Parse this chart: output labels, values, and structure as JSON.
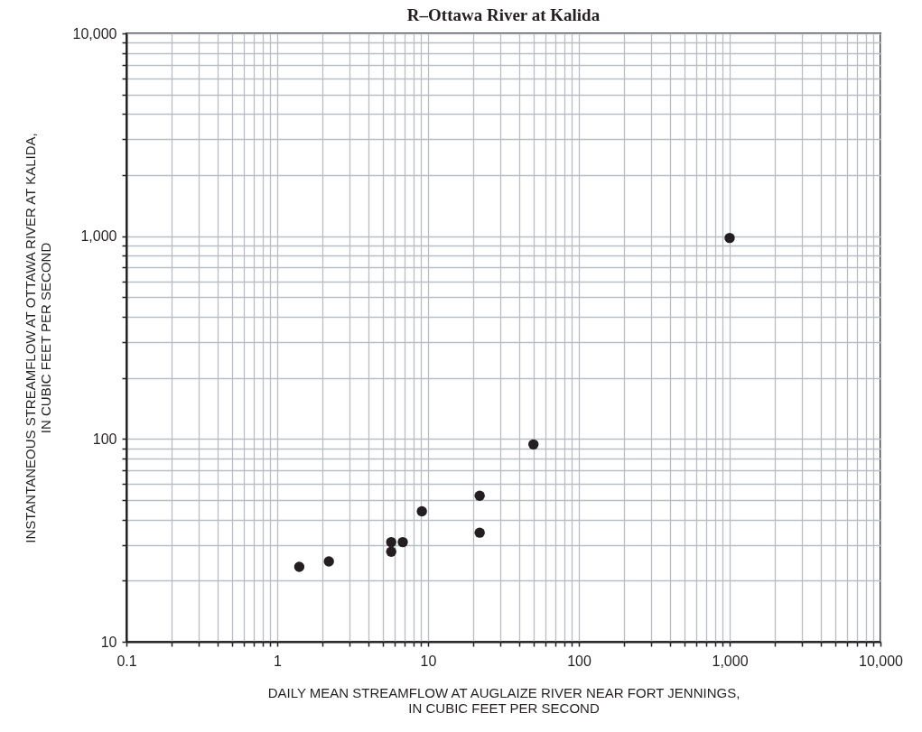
{
  "chart_data": {
    "type": "scatter",
    "title": "R–Ottawa River at Kalida",
    "xlabel": "DAILY MEAN STREAMFLOW AT AUGLAIZE RIVER NEAR FORT JENNINGS,\nIN CUBIC FEET PER SECOND",
    "ylabel": "INSTANTANEOUS STREAMFLOW AT OTTAWA RIVER AT KALIDA,\nIN CUBIC FEET PER SECOND",
    "x": [
      1.4,
      2.2,
      5.7,
      5.7,
      6.8,
      9.1,
      22,
      22,
      50,
      1000
    ],
    "series": [
      {
        "color": "#231f20",
        "values": [
          23.4,
          24.9,
          31,
          27.8,
          31,
          44,
          52.5,
          34.5,
          94,
          980
        ]
      }
    ],
    "log": "xy",
    "grid": true,
    "marker": "circle",
    "xlim": [
      0.1,
      10000
    ],
    "ylim": [
      10,
      10000
    ],
    "xticks": [
      0.1,
      {
        "value": 0.2,
        "label": null
      },
      {
        "value": 0.3,
        "label": null
      },
      {
        "value": 0.4,
        "label": null
      },
      {
        "value": 0.5,
        "label": null
      },
      {
        "value": 0.6,
        "label": null
      },
      {
        "value": 0.7,
        "label": null
      },
      {
        "value": 0.8,
        "label": null
      },
      {
        "value": 0.9,
        "label": null
      },
      1,
      {
        "value": 2,
        "label": null
      },
      {
        "value": 3,
        "label": null
      },
      {
        "value": 4,
        "label": null
      },
      {
        "value": 5,
        "label": null
      },
      {
        "value": 6,
        "label": null
      },
      {
        "value": 7,
        "label": null
      },
      {
        "value": 8,
        "label": null
      },
      {
        "value": 9,
        "label": null
      },
      10,
      {
        "value": 20,
        "label": null
      },
      {
        "value": 30,
        "label": null
      },
      {
        "value": 40,
        "label": null
      },
      {
        "value": 50,
        "label": null
      },
      {
        "value": 60,
        "label": null
      },
      {
        "value": 70,
        "label": null
      },
      {
        "value": 80,
        "label": null
      },
      {
        "value": 90,
        "label": null
      },
      100,
      {
        "value": 200,
        "label": null
      },
      {
        "value": 300,
        "label": null
      },
      {
        "value": 400,
        "label": null
      },
      {
        "value": 500,
        "label": null
      },
      {
        "value": 600,
        "label": null
      },
      {
        "value": 700,
        "label": null
      },
      {
        "value": 800,
        "label": null
      },
      {
        "value": 900,
        "label": null
      },
      {
        "value": 1000,
        "label": "1,000"
      },
      {
        "value": 2000,
        "label": null
      },
      {
        "value": 3000,
        "label": null
      },
      {
        "value": 4000,
        "label": null
      },
      {
        "value": 5000,
        "label": null
      },
      {
        "value": 6000,
        "label": null
      },
      {
        "value": 7000,
        "label": null
      },
      {
        "value": 8000,
        "label": null
      },
      {
        "value": 9000,
        "label": null
      },
      {
        "value": 10000,
        "label": "10,000"
      }
    ],
    "yticks": [
      10,
      {
        "value": 20,
        "label": null
      },
      {
        "value": 30,
        "label": null
      },
      {
        "value": 40,
        "label": null
      },
      {
        "value": 50,
        "label": null
      },
      {
        "value": 60,
        "label": null
      },
      {
        "value": 70,
        "label": null
      },
      {
        "value": 80,
        "label": null
      },
      {
        "value": 90,
        "label": null
      },
      100,
      {
        "value": 200,
        "label": null
      },
      {
        "value": 300,
        "label": null
      },
      {
        "value": 400,
        "label": null
      },
      {
        "value": 500,
        "label": null
      },
      {
        "value": 600,
        "label": null
      },
      {
        "value": 700,
        "label": null
      },
      {
        "value": 800,
        "label": null
      },
      {
        "value": 900,
        "label": null
      },
      {
        "value": 1000,
        "label": "1,000"
      },
      {
        "value": 2000,
        "label": null
      },
      {
        "value": 3000,
        "label": null
      },
      {
        "value": 4000,
        "label": null
      },
      {
        "value": 5000,
        "label": null
      },
      {
        "value": 6000,
        "label": null
      },
      {
        "value": 7000,
        "label": null
      },
      {
        "value": 8000,
        "label": null
      },
      {
        "value": 9000,
        "label": null
      },
      {
        "value": 10000,
        "label": "10,000"
      }
    ]
  }
}
